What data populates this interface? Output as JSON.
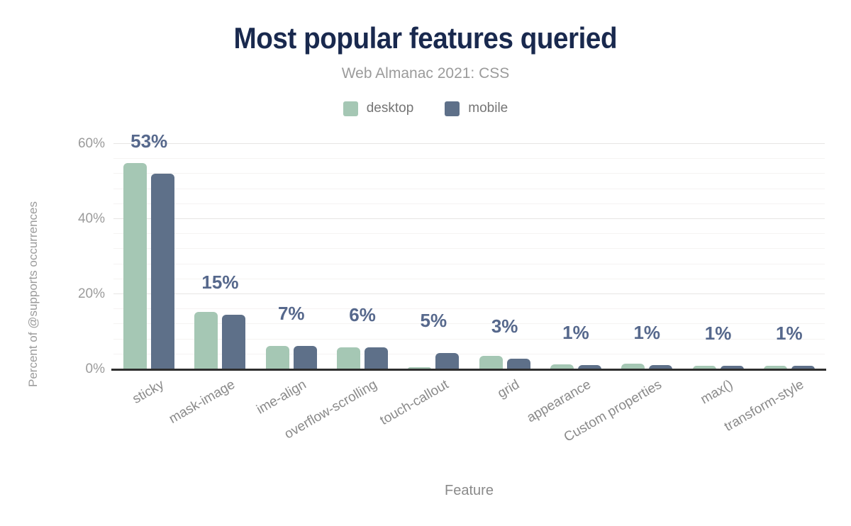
{
  "title": "Most popular features queried",
  "subtitle": "Web Almanac 2021: CSS",
  "chart_data": {
    "type": "bar",
    "title": "Most popular features queried",
    "subtitle": "Web Almanac 2021: CSS",
    "xlabel": "Feature",
    "ylabel": "Percent of @supports occurrences",
    "ylim": [
      0,
      60
    ],
    "yticks": [
      {
        "value": 0,
        "label": "0%"
      },
      {
        "value": 20,
        "label": "20%"
      },
      {
        "value": 40,
        "label": "40%"
      },
      {
        "value": 60,
        "label": "60%"
      }
    ],
    "minor_grid_step": 4,
    "grid": "on",
    "legend_position": "top",
    "categories": [
      "sticky",
      "mask-image",
      "ime-align",
      "overflow-scrolling",
      "touch-callout",
      "grid",
      "appearance",
      "Custom properties",
      "max()",
      "transform-style"
    ],
    "series": [
      {
        "name": "desktop",
        "color": "#a5c7b4",
        "values": [
          55,
          15.3,
          6.3,
          5.9,
          0.5,
          3.6,
          1.3,
          1.6,
          0.9,
          0.9
        ]
      },
      {
        "name": "mobile",
        "color": "#5e7089",
        "values": [
          52,
          14.6,
          6.3,
          5.9,
          4.4,
          2.9,
          1.1,
          1.2,
          0.9,
          0.9
        ]
      }
    ],
    "data_labels": [
      "53%",
      "15%",
      "7%",
      "6%",
      "5%",
      "3%",
      "1%",
      "1%",
      "1%",
      "1%"
    ],
    "data_label_color": "#56688c"
  },
  "colors": {
    "title": "#19294e",
    "subtitle": "#9b9b9b",
    "axis_line": "#2e2e2e",
    "major_grid": "#e7e5e4",
    "minor_grid": "#f5f3f2",
    "tick_text": "#9b9b9b"
  }
}
